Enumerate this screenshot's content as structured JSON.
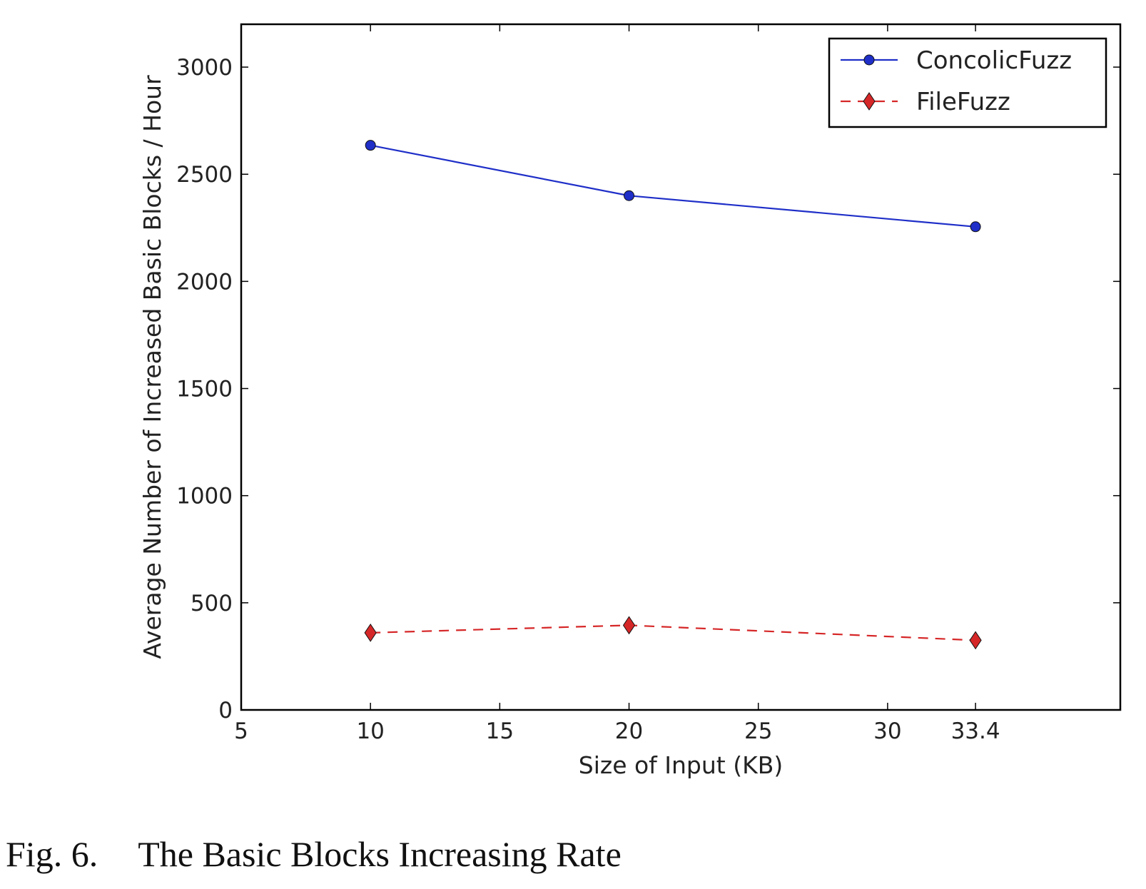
{
  "caption": {
    "label": "Fig. 6.",
    "text": "The Basic Blocks Increasing Rate"
  },
  "chart_data": {
    "type": "line",
    "xlabel": "Size of Input (KB)",
    "ylabel": "Average Number of Increased Basic Blocks / Hour",
    "xlim": [
      5,
      39
    ],
    "ylim": [
      0,
      3200
    ],
    "xticks": [
      5,
      10,
      15,
      20,
      25,
      30,
      33.4
    ],
    "xtick_labels": [
      "5",
      "10",
      "15",
      "20",
      "25",
      "30",
      "33.4"
    ],
    "yticks": [
      0,
      500,
      1000,
      1500,
      2000,
      2500,
      3000
    ],
    "ytick_labels": [
      "0",
      "500",
      "1000",
      "1500",
      "2000",
      "2500",
      "3000"
    ],
    "grid": false,
    "legend_position": "top-right",
    "x": [
      10,
      20,
      33.4
    ],
    "series": [
      {
        "name": "ConcolicFuzz",
        "values": [
          2635,
          2400,
          2255
        ],
        "color": "#1f2fc8",
        "line_style": "solid",
        "marker": "circle"
      },
      {
        "name": "FileFuzz",
        "values": [
          360,
          395,
          325
        ],
        "color": "#d62728",
        "line_style": "dashed",
        "marker": "diamond"
      }
    ]
  }
}
